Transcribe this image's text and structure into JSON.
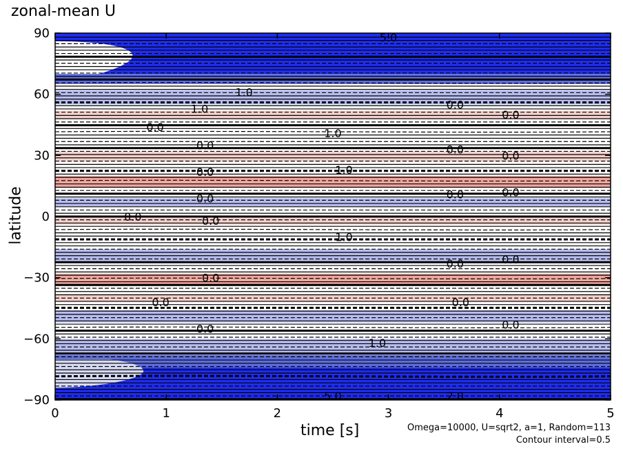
{
  "chart_data": {
    "type": "heatmap",
    "title": "zonal-mean U",
    "xlabel": "time [s]",
    "ylabel": "latitude",
    "xlim": [
      0,
      5
    ],
    "ylim": [
      -90,
      90
    ],
    "x_ticks": [
      "0",
      "1",
      "2",
      "3",
      "4",
      "5"
    ],
    "y_ticks": [
      "90",
      "60",
      "30",
      "0",
      "−30",
      "−60",
      "−90"
    ],
    "contour_interval": 0.5,
    "caption_params": "Omega=10000, U=sqrt2, a=1, Random=113",
    "caption_interval": "Contour interval=0.5",
    "contour_labels_sample": [
      "1.0",
      "0.0",
      "2.0",
      "5.0"
    ],
    "colors": {
      "strong_negative": "#1f2df2",
      "negative": "#5e6ee0",
      "weak_negative": "#b7bdf0",
      "weak_positive": "#f6d2cd",
      "positive": "#f0a8a0"
    },
    "bands": [
      {
        "lat": [
          70,
          90
        ],
        "t_start": 0.0,
        "t_end": 5.0,
        "level": "strong_negative",
        "note": "polar jet band widening with time"
      },
      {
        "lat": [
          65,
          70
        ],
        "t_start": 0.0,
        "t_end": 5.0,
        "level": "negative"
      },
      {
        "lat": [
          55,
          62
        ],
        "t_start": 0.0,
        "t_end": 5.0,
        "level": "weak_negative"
      },
      {
        "lat": [
          48,
          52
        ],
        "t_start": 0.0,
        "t_end": 5.0,
        "level": "weak_positive"
      },
      {
        "lat": [
          27,
          32
        ],
        "t_start": 0.0,
        "t_end": 5.0,
        "level": "weak_positive"
      },
      {
        "lat": [
          14,
          20
        ],
        "t_start": 0.0,
        "t_end": 5.0,
        "level": "positive"
      },
      {
        "lat": [
          5,
          9
        ],
        "t_start": 0.0,
        "t_end": 5.0,
        "level": "weak_negative"
      },
      {
        "lat": [
          -4,
          0
        ],
        "t_start": 0.0,
        "t_end": 5.0,
        "level": "weak_positive"
      },
      {
        "lat": [
          -22,
          -16
        ],
        "t_start": 0.0,
        "t_end": 5.0,
        "level": "weak_negative"
      },
      {
        "lat": [
          -34,
          -28
        ],
        "t_start": 0.0,
        "t_end": 5.0,
        "level": "positive"
      },
      {
        "lat": [
          -42,
          -38
        ],
        "t_start": 0.0,
        "t_end": 5.0,
        "level": "weak_positive"
      },
      {
        "lat": [
          -52,
          -46
        ],
        "t_start": 0.0,
        "t_end": 5.0,
        "level": "weak_negative"
      },
      {
        "lat": [
          -68,
          -60
        ],
        "t_start": 0.0,
        "t_end": 5.0,
        "level": "weak_negative"
      },
      {
        "lat": [
          -74,
          -68
        ],
        "t_start": 0.0,
        "t_end": 5.0,
        "level": "negative"
      },
      {
        "lat": [
          -90,
          -74
        ],
        "t_start": 0.0,
        "t_end": 5.0,
        "level": "strong_negative"
      }
    ]
  }
}
